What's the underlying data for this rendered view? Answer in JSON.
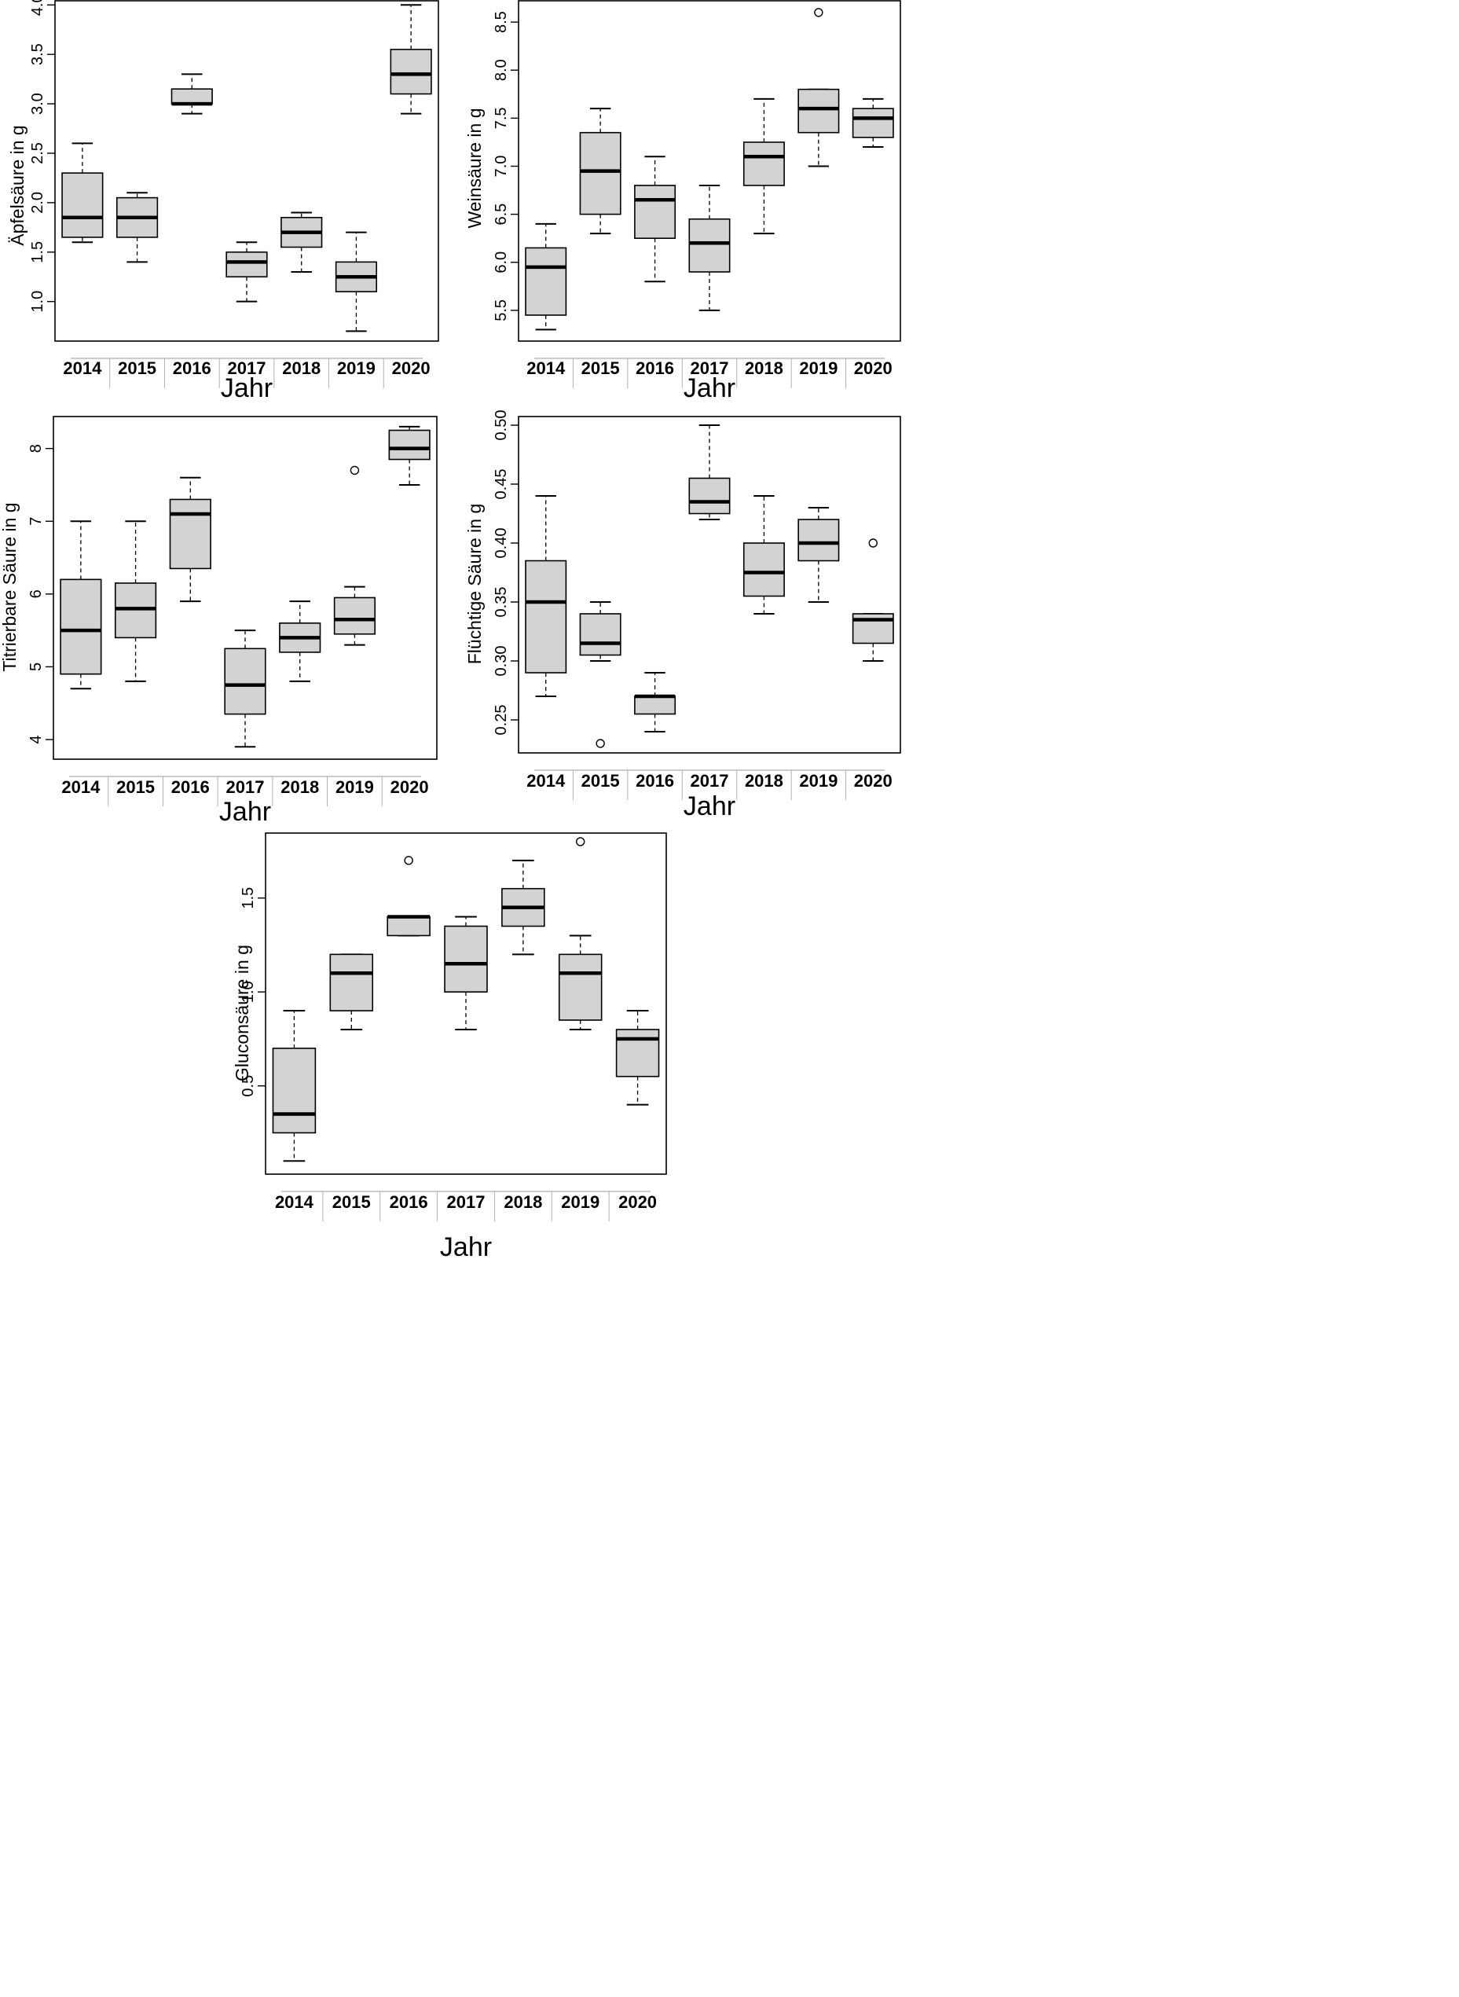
{
  "figure": {
    "colors": {
      "box_fill": "#d3d3d3",
      "stroke": "#000000",
      "background": "#ffffff"
    }
  },
  "chart_data": [
    {
      "type": "boxplot",
      "ylabel": "Äpfelsäure in g",
      "xlabel": "Jahr",
      "categories": [
        "2014",
        "2015",
        "2016",
        "2017",
        "2018",
        "2019",
        "2020"
      ],
      "ylim": [
        0.6,
        4.05
      ],
      "yticks": [
        1.0,
        1.5,
        2.0,
        2.5,
        3.0,
        3.5,
        4.0
      ],
      "ytick_labels": [
        "1.0",
        "1.5",
        "2.0",
        "2.5",
        "3.0",
        "3.5",
        "4.0"
      ],
      "boxes": [
        {
          "min": 1.6,
          "q1": 1.65,
          "median": 1.85,
          "q3": 2.3,
          "max": 2.6,
          "outliers": []
        },
        {
          "min": 1.4,
          "q1": 1.65,
          "median": 1.85,
          "q3": 2.05,
          "max": 2.1,
          "outliers": []
        },
        {
          "min": 2.9,
          "q1": 3.0,
          "median": 3.0,
          "q3": 3.15,
          "max": 3.3,
          "outliers": []
        },
        {
          "min": 1.0,
          "q1": 1.25,
          "median": 1.4,
          "q3": 1.5,
          "max": 1.6,
          "outliers": []
        },
        {
          "min": 1.3,
          "q1": 1.55,
          "median": 1.7,
          "q3": 1.85,
          "max": 1.9,
          "outliers": []
        },
        {
          "min": 0.7,
          "q1": 1.1,
          "median": 1.25,
          "q3": 1.4,
          "max": 1.7,
          "outliers": []
        },
        {
          "min": 2.9,
          "q1": 3.1,
          "median": 3.3,
          "q3": 3.55,
          "max": 4.0,
          "outliers": []
        }
      ]
    },
    {
      "type": "boxplot",
      "ylabel": "Weinsäure in g",
      "xlabel": "Jahr",
      "categories": [
        "2014",
        "2015",
        "2016",
        "2017",
        "2018",
        "2019",
        "2020"
      ],
      "ylim": [
        5.18,
        8.73
      ],
      "yticks": [
        5.5,
        6.0,
        6.5,
        7.0,
        7.5,
        8.0,
        8.5
      ],
      "ytick_labels": [
        "5.5",
        "6.0",
        "6.5",
        "7.0",
        "7.5",
        "8.0",
        "8.5"
      ],
      "boxes": [
        {
          "min": 5.3,
          "q1": 5.45,
          "median": 5.95,
          "q3": 6.15,
          "max": 6.4,
          "outliers": []
        },
        {
          "min": 6.3,
          "q1": 6.5,
          "median": 6.95,
          "q3": 7.35,
          "max": 7.6,
          "outliers": []
        },
        {
          "min": 5.8,
          "q1": 6.25,
          "median": 6.65,
          "q3": 6.8,
          "max": 7.1,
          "outliers": []
        },
        {
          "min": 5.5,
          "q1": 5.9,
          "median": 6.2,
          "q3": 6.45,
          "max": 6.8,
          "outliers": []
        },
        {
          "min": 6.3,
          "q1": 6.8,
          "median": 7.1,
          "q3": 7.25,
          "max": 7.7,
          "outliers": []
        },
        {
          "min": 7.0,
          "q1": 7.35,
          "median": 7.6,
          "q3": 7.8,
          "max": 7.8,
          "outliers": [
            8.6
          ]
        },
        {
          "min": 7.2,
          "q1": 7.3,
          "median": 7.5,
          "q3": 7.6,
          "max": 7.7,
          "outliers": []
        }
      ]
    },
    {
      "type": "boxplot",
      "ylabel": "Titrierbare Säure in g",
      "xlabel": "Jahr",
      "categories": [
        "2014",
        "2015",
        "2016",
        "2017",
        "2018",
        "2019",
        "2020"
      ],
      "ylim": [
        3.73,
        8.45
      ],
      "yticks": [
        4,
        5,
        6,
        7,
        8
      ],
      "ytick_labels": [
        "4",
        "5",
        "6",
        "7",
        "8"
      ],
      "boxes": [
        {
          "min": 4.7,
          "q1": 4.9,
          "median": 5.5,
          "q3": 6.2,
          "max": 7.0,
          "outliers": []
        },
        {
          "min": 4.8,
          "q1": 5.4,
          "median": 5.8,
          "q3": 6.15,
          "max": 7.0,
          "outliers": []
        },
        {
          "min": 5.9,
          "q1": 6.35,
          "median": 7.1,
          "q3": 7.3,
          "max": 7.6,
          "outliers": []
        },
        {
          "min": 3.9,
          "q1": 4.35,
          "median": 4.75,
          "q3": 5.25,
          "max": 5.5,
          "outliers": []
        },
        {
          "min": 4.8,
          "q1": 5.2,
          "median": 5.4,
          "q3": 5.6,
          "max": 5.9,
          "outliers": []
        },
        {
          "min": 5.3,
          "q1": 5.45,
          "median": 5.65,
          "q3": 5.95,
          "max": 6.1,
          "outliers": [
            7.7
          ]
        },
        {
          "min": 7.5,
          "q1": 7.85,
          "median": 8.0,
          "q3": 8.25,
          "max": 8.3,
          "outliers": []
        }
      ]
    },
    {
      "type": "boxplot",
      "ylabel": "Flüchtige Säure in g",
      "xlabel": "Jahr",
      "categories": [
        "2014",
        "2015",
        "2016",
        "2017",
        "2018",
        "2019",
        "2020"
      ],
      "ylim": [
        0.222,
        0.508
      ],
      "yticks": [
        0.25,
        0.3,
        0.35,
        0.4,
        0.45,
        0.5
      ],
      "ytick_labels": [
        "0.25",
        "0.30",
        "0.35",
        "0.40",
        "0.45",
        "0.50"
      ],
      "boxes": [
        {
          "min": 0.27,
          "q1": 0.29,
          "median": 0.35,
          "q3": 0.385,
          "max": 0.44,
          "outliers": []
        },
        {
          "min": 0.3,
          "q1": 0.305,
          "median": 0.315,
          "q3": 0.34,
          "max": 0.35,
          "outliers": [
            0.23
          ]
        },
        {
          "min": 0.24,
          "q1": 0.255,
          "median": 0.27,
          "q3": 0.27,
          "max": 0.29,
          "outliers": []
        },
        {
          "min": 0.42,
          "q1": 0.425,
          "median": 0.435,
          "q3": 0.455,
          "max": 0.5,
          "outliers": []
        },
        {
          "min": 0.34,
          "q1": 0.355,
          "median": 0.375,
          "q3": 0.4,
          "max": 0.44,
          "outliers": []
        },
        {
          "min": 0.35,
          "q1": 0.385,
          "median": 0.4,
          "q3": 0.42,
          "max": 0.43,
          "outliers": []
        },
        {
          "min": 0.3,
          "q1": 0.315,
          "median": 0.335,
          "q3": 0.34,
          "max": 0.34,
          "outliers": [
            0.4
          ]
        }
      ]
    },
    {
      "type": "boxplot",
      "ylabel": "Gluconsäure in g",
      "xlabel": "Jahr",
      "categories": [
        "2014",
        "2015",
        "2016",
        "2017",
        "2018",
        "2019",
        "2020"
      ],
      "ylim": [
        0.03,
        1.85
      ],
      "yticks": [
        0.5,
        1.0,
        1.5
      ],
      "ytick_labels": [
        "0.5",
        "1.0",
        "1.5"
      ],
      "boxes": [
        {
          "min": 0.1,
          "q1": 0.25,
          "median": 0.35,
          "q3": 0.7,
          "max": 0.9,
          "outliers": []
        },
        {
          "min": 0.8,
          "q1": 0.9,
          "median": 1.1,
          "q3": 1.2,
          "max": 1.2,
          "outliers": []
        },
        {
          "min": 1.3,
          "q1": 1.3,
          "median": 1.4,
          "q3": 1.4,
          "max": 1.4,
          "outliers": [
            1.7
          ]
        },
        {
          "min": 0.8,
          "q1": 1.0,
          "median": 1.15,
          "q3": 1.35,
          "max": 1.4,
          "outliers": []
        },
        {
          "min": 1.2,
          "q1": 1.35,
          "median": 1.45,
          "q3": 1.55,
          "max": 1.7,
          "outliers": []
        },
        {
          "min": 0.8,
          "q1": 0.85,
          "median": 1.1,
          "q3": 1.2,
          "max": 1.3,
          "outliers": [
            1.8
          ]
        },
        {
          "min": 0.4,
          "q1": 0.55,
          "median": 0.75,
          "q3": 0.8,
          "max": 0.9,
          "outliers": []
        }
      ]
    }
  ]
}
